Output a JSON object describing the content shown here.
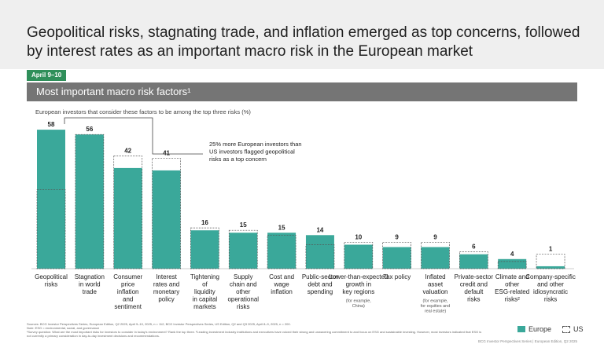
{
  "header": {
    "title": "Geopolitical risks, stagnating trade, and inflation emerged as top concerns, followed by interest rates as an important macro risk in the European market",
    "date_badge": "April 9–10",
    "section_title": "Most important macro risk factors¹",
    "subtitle": "European investors that consider these factors to be among the top three risks (%)"
  },
  "annotation": {
    "text": "25% more European investors than US investors flagged geopolitical risks as a top concern"
  },
  "legend": {
    "europe": "Europe",
    "us": "US"
  },
  "colors": {
    "europe": "#3aa89a",
    "us_outline": "#555555"
  },
  "chart_data": {
    "type": "bar",
    "title": "Most important macro risk factors¹",
    "ylabel": "European investors that consider these factors to be among the top three risks (%)",
    "ylim": [
      0,
      60
    ],
    "categories": [
      {
        "label": "Geopolitical risks"
      },
      {
        "label": "Stagnation in world trade"
      },
      {
        "label": "Consumer price inflation and sentiment"
      },
      {
        "label": "Interest rates and monetary policy"
      },
      {
        "label": "Tightening of liquidity in capital markets"
      },
      {
        "label": "Supply chain and other operational risks"
      },
      {
        "label": "Cost and wage inflation"
      },
      {
        "label": "Public-sector debt and spending"
      },
      {
        "label": "Lower-than-expected growth in key regions",
        "note": "(for example, China)"
      },
      {
        "label": "Tax policy"
      },
      {
        "label": "Inflated asset valuation",
        "note": "(for example, for equities and real estate)"
      },
      {
        "label": "Private-sector credit and default risks"
      },
      {
        "label": "Climate and other ESG-related risks²"
      },
      {
        "label": "Company-specific and other idiosyncratic risks"
      }
    ],
    "series": [
      {
        "name": "Europe",
        "values": [
          58,
          56,
          42,
          41,
          16,
          15,
          15,
          14,
          10,
          9,
          9,
          6,
          4,
          1
        ]
      },
      {
        "name": "US",
        "values": [
          33,
          56,
          47,
          46,
          17,
          16,
          14,
          10,
          11,
          11,
          11,
          7,
          3,
          6
        ]
      }
    ]
  },
  "footnotes": {
    "line1": "Sources: BCG Investor Perspectives Series, European Edition, Q2 2025, April 9–10, 2025, n = 112; BCG Investor Perspectives Series, US Edition, Q2 and Q3 2025, April 8–9, 2025, n = 200.",
    "line2": "Note: ESG = environmental, social, and governance",
    "line3": "¹Survey question: What are the most important risks for investors to consider in today's environment? Rank the top three. ²Leading investment industry institutions and executives have voiced their strong and unwavering commitment to and focus on ESG and sustainable investing. However, most investors indicated that ESG is not currently a primary consideration in day-to-day investment decisions and recommendations.",
    "source": "BCG Investor Perspectives Series | European Edition, Q2 2025"
  }
}
